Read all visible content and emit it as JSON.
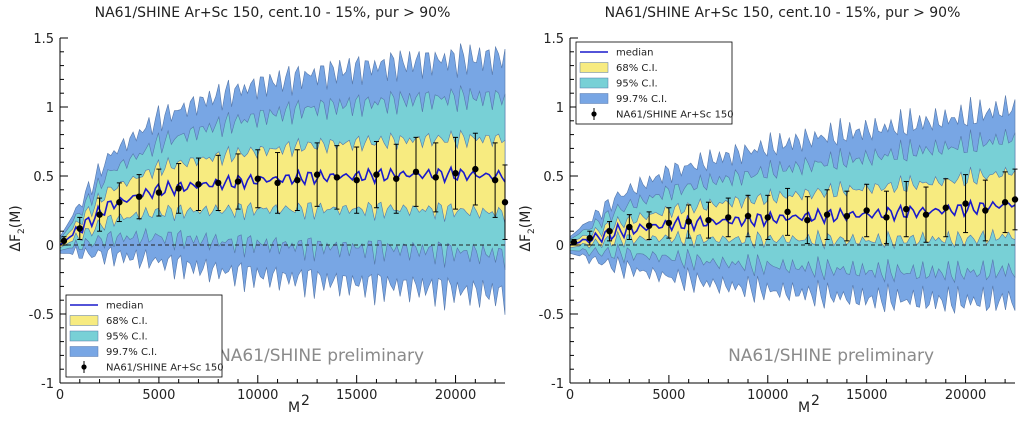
{
  "chart_data": [
    {
      "type": "line",
      "title": "NA61/SHINE Ar+Sc 150, cent.10 - 15%, pur > 90%",
      "xlabel": "M",
      "xlabel_sup": "2",
      "ylabel": "ΔF",
      "ylabel_sub": "2",
      "ylabel_tail": "(M)",
      "xlim": [
        0,
        22500
      ],
      "ylim": [
        -1,
        1.5
      ],
      "x_ticks": [
        0,
        5000,
        10000,
        15000,
        20000
      ],
      "x_tick_labels": [
        "0",
        "5000",
        "10000",
        "15000",
        "20000"
      ],
      "y_ticks": [
        -1,
        -0.5,
        0,
        0.5,
        1,
        1.5
      ],
      "y_tick_labels": [
        "-1",
        "-0.5",
        "0",
        "0.5",
        "1",
        "1.5"
      ],
      "reference_line": 0,
      "legend_position": "bottom-left",
      "legend": [
        "median",
        "68% C.I.",
        "95% C.I.",
        "99.7% C.I.",
        "NA61/SHINE Ar+Sc 150"
      ],
      "annotation": "NA61/SHINE preliminary",
      "colors": {
        "median": "#1a1acc",
        "ci68": "#f7eb80",
        "ci95": "#78d0d6",
        "ci997": "#78a6e4",
        "data": "#000000"
      },
      "x": [
        0,
        2500,
        5000,
        7500,
        10000,
        12500,
        15000,
        17500,
        20000,
        22500
      ],
      "median": [
        0.0,
        0.29,
        0.4,
        0.44,
        0.47,
        0.49,
        0.5,
        0.51,
        0.51,
        0.5
      ],
      "ci68_halfwidth": [
        0.02,
        0.11,
        0.16,
        0.19,
        0.21,
        0.23,
        0.24,
        0.25,
        0.26,
        0.27
      ],
      "ci95_halfwidth": [
        0.04,
        0.24,
        0.34,
        0.41,
        0.46,
        0.5,
        0.52,
        0.54,
        0.56,
        0.57
      ],
      "ci997_halfwidth": [
        0.06,
        0.36,
        0.52,
        0.62,
        0.69,
        0.74,
        0.78,
        0.81,
        0.84,
        0.86
      ],
      "series": [
        {
          "name": "NA61/SHINE Ar+Sc 150",
          "x": [
            200,
            1000,
            2000,
            3000,
            4000,
            5000,
            6000,
            7000,
            8000,
            9000,
            10000,
            11000,
            12000,
            13000,
            14000,
            15000,
            16000,
            17000,
            18000,
            19000,
            20000,
            21000,
            22000,
            22500
          ],
          "y": [
            0.03,
            0.12,
            0.22,
            0.31,
            0.35,
            0.38,
            0.41,
            0.44,
            0.45,
            0.46,
            0.48,
            0.45,
            0.47,
            0.51,
            0.49,
            0.47,
            0.51,
            0.48,
            0.53,
            0.49,
            0.52,
            0.55,
            0.47,
            0.31
          ],
          "yerr": [
            0.03,
            0.08,
            0.12,
            0.14,
            0.16,
            0.17,
            0.18,
            0.19,
            0.2,
            0.2,
            0.21,
            0.22,
            0.22,
            0.23,
            0.23,
            0.24,
            0.24,
            0.25,
            0.25,
            0.25,
            0.26,
            0.26,
            0.27,
            0.27
          ]
        }
      ]
    },
    {
      "type": "line",
      "title": "NA61/SHINE Ar+Sc 150, cent.10 - 15%, pur > 90%",
      "xlabel": "M",
      "xlabel_sup": "2",
      "ylabel": "ΔF",
      "ylabel_sub": "2",
      "ylabel_tail": "(M)",
      "xlim": [
        0,
        22500
      ],
      "ylim": [
        -1,
        1.5
      ],
      "x_ticks": [
        0,
        5000,
        10000,
        15000,
        20000
      ],
      "x_tick_labels": [
        "0",
        "5000",
        "10000",
        "15000",
        "20000"
      ],
      "y_ticks": [
        -1,
        -0.5,
        0,
        0.5,
        1,
        1.5
      ],
      "y_tick_labels": [
        "-1",
        "-0.5",
        "0",
        "0.5",
        "1",
        "1.5"
      ],
      "reference_line": 0,
      "legend_position": "top-left",
      "legend": [
        "median",
        "68% C.I.",
        "95% C.I.",
        "99.7% C.I.",
        "NA61/SHINE Ar+Sc 150"
      ],
      "annotation": "NA61/SHINE preliminary",
      "colors": {
        "median": "#1a1acc",
        "ci68": "#f7eb80",
        "ci95": "#78d0d6",
        "ci997": "#78a6e4",
        "data": "#000000"
      },
      "x": [
        0,
        2500,
        5000,
        7500,
        10000,
        12500,
        15000,
        17500,
        20000,
        22500
      ],
      "median": [
        0.0,
        0.1,
        0.15,
        0.17,
        0.19,
        0.21,
        0.22,
        0.24,
        0.26,
        0.3
      ],
      "ci68_halfwidth": [
        0.02,
        0.06,
        0.1,
        0.13,
        0.15,
        0.17,
        0.19,
        0.2,
        0.22,
        0.23
      ],
      "ci95_halfwidth": [
        0.04,
        0.16,
        0.24,
        0.3,
        0.34,
        0.38,
        0.41,
        0.44,
        0.46,
        0.48
      ],
      "ci997_halfwidth": [
        0.06,
        0.26,
        0.38,
        0.46,
        0.52,
        0.57,
        0.61,
        0.64,
        0.67,
        0.7
      ],
      "series": [
        {
          "name": "NA61/SHINE Ar+Sc 150",
          "x": [
            200,
            1000,
            2000,
            3000,
            4000,
            5000,
            6000,
            7000,
            8000,
            9000,
            10000,
            11000,
            12000,
            13000,
            14000,
            15000,
            16000,
            17000,
            18000,
            19000,
            20000,
            21000,
            22000,
            22500
          ],
          "y": [
            0.02,
            0.05,
            0.1,
            0.13,
            0.14,
            0.16,
            0.17,
            0.18,
            0.2,
            0.21,
            0.2,
            0.24,
            0.18,
            0.22,
            0.21,
            0.25,
            0.2,
            0.26,
            0.22,
            0.27,
            0.3,
            0.25,
            0.31,
            0.33
          ],
          "yerr": [
            0.02,
            0.05,
            0.07,
            0.09,
            0.1,
            0.11,
            0.12,
            0.13,
            0.14,
            0.15,
            0.16,
            0.17,
            0.17,
            0.18,
            0.18,
            0.19,
            0.19,
            0.2,
            0.2,
            0.21,
            0.21,
            0.22,
            0.22,
            0.22
          ]
        }
      ]
    }
  ]
}
